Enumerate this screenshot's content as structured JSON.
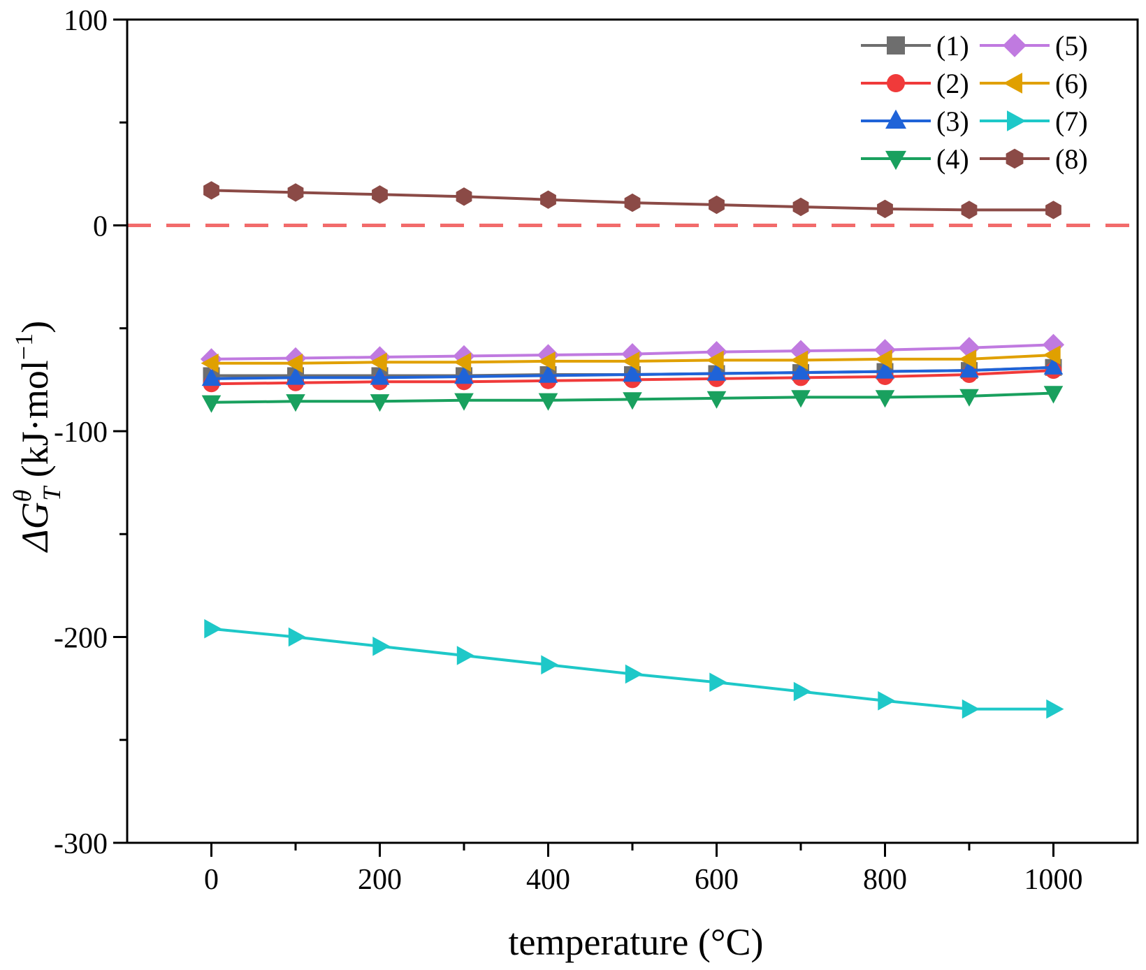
{
  "chart_data": {
    "type": "line",
    "title": "",
    "xlabel": "temperature (°C)",
    "ylabel": {
      "delta": "ΔG",
      "superscript": "θ",
      "subscript": "T",
      "units": " (kJ·mol",
      "units_exp": "−1",
      "units_close": ")"
    },
    "xlim": [
      -100,
      1100
    ],
    "ylim": [
      -300,
      100
    ],
    "x_ticks": [
      0,
      200,
      400,
      600,
      800,
      1000
    ],
    "x_minor_ticks": [
      100,
      300,
      500,
      700,
      900
    ],
    "y_ticks": [
      -300,
      -200,
      -100,
      0,
      100
    ],
    "y_minor_ticks": [
      -250,
      -150,
      -50,
      50
    ],
    "reference_line": {
      "y": 0,
      "style": "dashed",
      "color": "#f26b6b"
    },
    "legend_position": "top-right",
    "x": [
      0,
      100,
      200,
      300,
      400,
      500,
      600,
      700,
      800,
      900,
      1000
    ],
    "series": [
      {
        "name": "(1)",
        "marker": "square",
        "color": "#6e6e6e",
        "values": [
          -73,
          -73,
          -73,
          -73,
          -72.5,
          -72.5,
          -72,
          -71.5,
          -71,
          -70.5,
          -69
        ]
      },
      {
        "name": "(2)",
        "marker": "circle",
        "color": "#f03a3a",
        "values": [
          -77,
          -76.5,
          -76,
          -76,
          -75.5,
          -75,
          -74.5,
          -74,
          -73.5,
          -72.5,
          -70.5
        ]
      },
      {
        "name": "(3)",
        "marker": "triangle-up",
        "color": "#1f63d8",
        "values": [
          -74.5,
          -74,
          -74,
          -73.5,
          -73,
          -72.5,
          -72,
          -71.5,
          -71,
          -70.5,
          -69
        ]
      },
      {
        "name": "(4)",
        "marker": "triangle-down",
        "color": "#19a05e",
        "values": [
          -86,
          -85.5,
          -85.5,
          -85,
          -85,
          -84.5,
          -84,
          -83.5,
          -83.5,
          -83,
          -81.5
        ]
      },
      {
        "name": "(5)",
        "marker": "diamond",
        "color": "#c07ae0",
        "values": [
          -65,
          -64.5,
          -64,
          -63.5,
          -63,
          -62.5,
          -61.5,
          -61,
          -60.5,
          -59.5,
          -58
        ]
      },
      {
        "name": "(6)",
        "marker": "triangle-left",
        "color": "#e0a000",
        "values": [
          -67,
          -67,
          -66.5,
          -66.5,
          -66,
          -66,
          -65.5,
          -65.5,
          -65,
          -65,
          -63
        ]
      },
      {
        "name": "(7)",
        "marker": "triangle-right",
        "color": "#1ec8c8",
        "values": [
          -196,
          -200,
          -204.5,
          -209,
          -213.5,
          -218,
          -222,
          -226.5,
          -231,
          -235,
          -235
        ]
      },
      {
        "name": "(8)",
        "marker": "hexagon",
        "color": "#8b4a46",
        "values": [
          17,
          16,
          15,
          14,
          12.5,
          11,
          10,
          9,
          8,
          7.5,
          7.5
        ]
      }
    ]
  }
}
